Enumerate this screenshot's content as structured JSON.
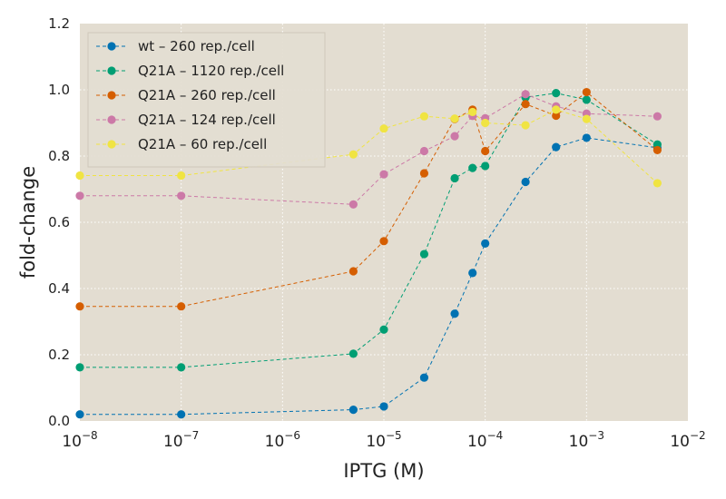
{
  "chart_data": {
    "type": "line",
    "title": "",
    "xlabel": "IPTG (M)",
    "ylabel": "fold-change",
    "x_scale": "log",
    "xlim": [
      1e-08,
      0.01
    ],
    "ylim": [
      0.0,
      1.2
    ],
    "x_ticks": [
      {
        "value": 1e-08,
        "base": "10",
        "exp": "−8"
      },
      {
        "value": 1e-07,
        "base": "10",
        "exp": "−7"
      },
      {
        "value": 1e-06,
        "base": "10",
        "exp": "−6"
      },
      {
        "value": 1e-05,
        "base": "10",
        "exp": "−5"
      },
      {
        "value": 0.0001,
        "base": "10",
        "exp": "−4"
      },
      {
        "value": 0.001,
        "base": "10",
        "exp": "−3"
      },
      {
        "value": 0.01,
        "base": "10",
        "exp": "−2"
      }
    ],
    "y_ticks": [
      {
        "value": 0.0,
        "label": "0.0"
      },
      {
        "value": 0.2,
        "label": "0.2"
      },
      {
        "value": 0.4,
        "label": "0.4"
      },
      {
        "value": 0.6,
        "label": "0.6"
      },
      {
        "value": 0.8,
        "label": "0.8"
      },
      {
        "value": 1.0,
        "label": "1.0"
      },
      {
        "value": 1.2,
        "label": "1.2"
      }
    ],
    "grid": true,
    "background": "#e3ddd1",
    "grid_color": "#ffffff",
    "legend_position": "top-left",
    "x": [
      1e-08,
      1e-07,
      5e-06,
      1e-05,
      2.5e-05,
      5e-05,
      7.5e-05,
      0.0001,
      0.00025,
      0.0005,
      0.001,
      0.005
    ],
    "series": [
      {
        "name": "wt – 260 rep./cell",
        "color": "#0072b2",
        "values": [
          0.02,
          0.02,
          0.034,
          0.044,
          0.131,
          0.324,
          0.447,
          0.536,
          0.722,
          0.827,
          0.855,
          0.825
        ]
      },
      {
        "name": "Q21A – 1120 rep./cell",
        "color": "#009e73",
        "values": [
          0.162,
          0.162,
          0.203,
          0.276,
          0.504,
          0.733,
          0.764,
          0.77,
          0.977,
          0.99,
          0.97,
          0.835
        ]
      },
      {
        "name": "Q21A – 260 rep./cell",
        "color": "#d55e00",
        "values": [
          0.346,
          0.346,
          0.452,
          0.543,
          0.748,
          0.912,
          0.94,
          0.815,
          0.957,
          0.922,
          0.993,
          0.818
        ]
      },
      {
        "name": "Q21A – 124 rep./cell",
        "color": "#cc79a7",
        "values": [
          0.68,
          0.68,
          0.654,
          0.745,
          0.815,
          0.86,
          0.921,
          0.914,
          0.987,
          0.95,
          0.928,
          0.92
        ]
      },
      {
        "name": "Q21A – 60 rep./cell",
        "color": "#f0e442",
        "values": [
          0.741,
          0.741,
          0.805,
          0.883,
          0.92,
          0.913,
          0.933,
          0.9,
          0.893,
          0.94,
          0.912,
          0.718
        ]
      }
    ]
  }
}
